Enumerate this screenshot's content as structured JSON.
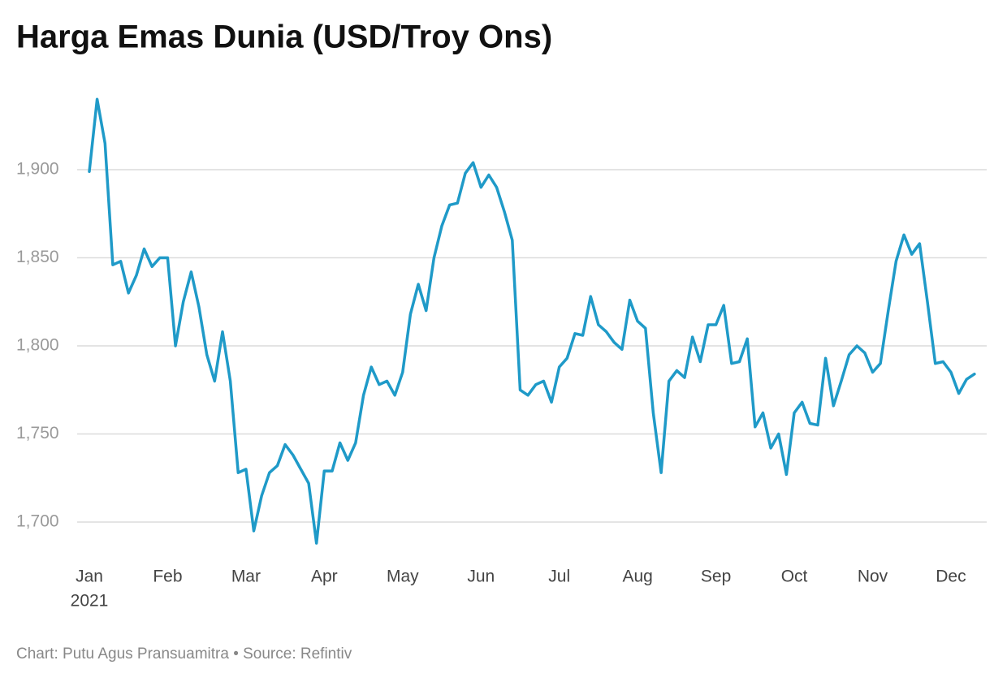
{
  "chart_data": {
    "type": "line",
    "title": "Harga Emas Dunia (USD/Troy Ons)",
    "footer": "Chart: Putu Agus Pransuamitra • Source: Refintiv",
    "x_sublabel": "2021",
    "categories": [
      "Jan",
      null,
      null,
      null,
      null,
      null,
      null,
      null,
      null,
      null,
      "Feb",
      null,
      null,
      null,
      null,
      null,
      null,
      null,
      null,
      null,
      "Mar",
      null,
      null,
      null,
      null,
      null,
      null,
      null,
      null,
      null,
      "Apr",
      null,
      null,
      null,
      null,
      null,
      null,
      null,
      null,
      null,
      "May",
      null,
      null,
      null,
      null,
      null,
      null,
      null,
      null,
      null,
      "Jun",
      null,
      null,
      null,
      null,
      null,
      null,
      null,
      null,
      null,
      "Jul",
      null,
      null,
      null,
      null,
      null,
      null,
      null,
      null,
      null,
      "Aug",
      null,
      null,
      null,
      null,
      null,
      null,
      null,
      null,
      null,
      "Sep",
      null,
      null,
      null,
      null,
      null,
      null,
      null,
      null,
      null,
      "Oct",
      null,
      null,
      null,
      null,
      null,
      null,
      null,
      null,
      null,
      "Nov",
      null,
      null,
      null,
      null,
      null,
      null,
      null,
      null,
      null,
      "Dec",
      null,
      null,
      null
    ],
    "series": [
      {
        "name": "Harga Emas",
        "color": "#1f9ac8",
        "values": [
          1899,
          1940,
          1915,
          1846,
          1848,
          1830,
          1840,
          1855,
          1845,
          1850,
          1850,
          1800,
          1825,
          1842,
          1822,
          1795,
          1780,
          1808,
          1780,
          1728,
          1730,
          1695,
          1715,
          1728,
          1732,
          1744,
          1738,
          1730,
          1722,
          1688,
          1729,
          1729,
          1745,
          1735,
          1745,
          1772,
          1788,
          1778,
          1780,
          1772,
          1785,
          1818,
          1835,
          1820,
          1850,
          1868,
          1880,
          1881,
          1898,
          1904,
          1890,
          1897,
          1890,
          1876,
          1860,
          1775,
          1772,
          1778,
          1780,
          1768,
          1788,
          1793,
          1807,
          1806,
          1828,
          1812,
          1808,
          1802,
          1798,
          1826,
          1814,
          1810,
          1762,
          1728,
          1780,
          1786,
          1782,
          1805,
          1791,
          1812,
          1812,
          1823,
          1790,
          1791,
          1804,
          1754,
          1762,
          1742,
          1750,
          1727,
          1762,
          1768,
          1756,
          1755,
          1793,
          1766,
          1780,
          1795,
          1800,
          1796,
          1785,
          1790,
          1820,
          1848,
          1863,
          1852,
          1858,
          1825,
          1790,
          1791,
          1785,
          1773,
          1781,
          1784
        ]
      }
    ],
    "ylim": [
      1680,
      1950
    ],
    "yticks": [
      {
        "value": 1700,
        "label": "1,700"
      },
      {
        "value": 1750,
        "label": "1,750"
      },
      {
        "value": 1800,
        "label": "1,800"
      },
      {
        "value": 1850,
        "label": "1,850"
      },
      {
        "value": 1900,
        "label": "1,900"
      }
    ],
    "grid": true
  }
}
